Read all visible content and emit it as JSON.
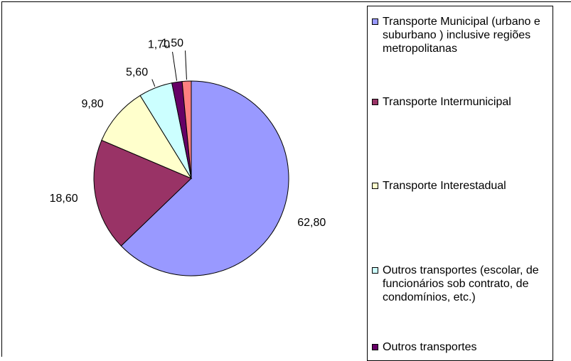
{
  "chart_data": {
    "type": "pie",
    "categories": [
      "Transporte Municipal (urbano e suburbano ) inclusive regiões metropolitanas",
      "Transporte Intermunicipal",
      "Transporte Interestadual",
      "Outros transportes (escolar, de funcionários sob contrato, de condomínios, etc.)",
      "Outros transportes",
      null
    ],
    "values": [
      62.8,
      18.6,
      9.8,
      5.6,
      1.7,
      1.5
    ],
    "value_labels": [
      "62,80",
      "18,60",
      "9,80",
      "5,60",
      "1,70",
      "1,50"
    ],
    "colors": [
      "#9999ff",
      "#993366",
      "#ffffcc",
      "#ccffff",
      "#660066",
      "#ff8080"
    ],
    "legend": "right"
  }
}
